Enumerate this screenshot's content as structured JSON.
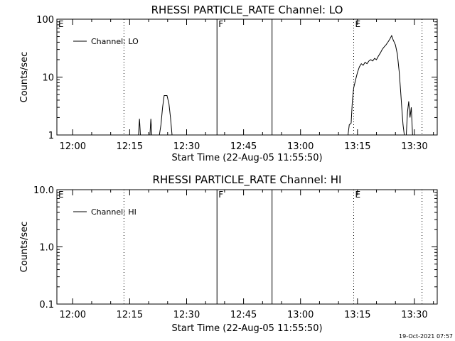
{
  "chart_data": [
    {
      "type": "line",
      "title": "RHESSI PARTICLE_RATE Channel: LO",
      "xlabel": "Start Time (22-Aug-05 11:55:50)",
      "ylabel": "Counts/sec",
      "yscale": "log",
      "xlim": [
        "11:55:50",
        "13:36:00"
      ],
      "ylim": [
        1,
        100
      ],
      "x_ticks": [
        "12:00",
        "12:15",
        "12:30",
        "12:45",
        "13:00",
        "13:15",
        "13:30"
      ],
      "y_ticks": [
        "1",
        "10",
        "100"
      ],
      "grid": false,
      "legend": {
        "position": "top-left",
        "label": "Channel: LO",
        "color": "#000000"
      },
      "markers": [
        {
          "label": "E",
          "time": "11:55:50",
          "style": "dotted"
        },
        {
          "label": "",
          "time": "12:13:30",
          "style": "dotted"
        },
        {
          "label": "F",
          "time": "12:38:00",
          "style": "solid"
        },
        {
          "label": "",
          "time": "12:52:30",
          "style": "solid"
        },
        {
          "label": "E",
          "time": "13:14:00",
          "style": "dotted"
        },
        {
          "label": "",
          "time": "13:32:00",
          "style": "dotted"
        }
      ],
      "series": [
        {
          "name": "Channel: LO",
          "color": "#000000",
          "segments": [
            [
              [
                "12:17:20",
                1.0
              ],
              [
                "12:17:35",
                1.9
              ],
              [
                "12:17:50",
                1.0
              ]
            ],
            [
              [
                "12:20:20",
                1.0
              ],
              [
                "12:20:35",
                1.9
              ],
              [
                "12:20:50",
                1.0
              ]
            ],
            [
              [
                "12:22:50",
                1.0
              ],
              [
                "12:23:15",
                1.5
              ],
              [
                "12:23:40",
                3.0
              ],
              [
                "12:24:05",
                4.8
              ],
              [
                "12:24:50",
                4.8
              ],
              [
                "12:25:20",
                3.5
              ],
              [
                "12:25:45",
                2.0
              ],
              [
                "12:26:10",
                1.0
              ]
            ],
            [
              [
                "13:12:30",
                1.0
              ],
              [
                "13:12:50",
                1.5
              ],
              [
                "13:13:20",
                1.6
              ],
              [
                "13:13:40",
                4.0
              ],
              [
                "13:14:00",
                6.5
              ],
              [
                "13:14:30",
                9.0
              ],
              [
                "13:15:00",
                12
              ],
              [
                "13:15:30",
                15
              ],
              [
                "13:16:00",
                17
              ],
              [
                "13:16:30",
                16
              ],
              [
                "13:17:00",
                18
              ],
              [
                "13:17:30",
                17
              ],
              [
                "13:18:00",
                19
              ],
              [
                "13:18:30",
                20
              ],
              [
                "13:19:00",
                19
              ],
              [
                "13:19:30",
                21
              ],
              [
                "13:20:00",
                20
              ],
              [
                "13:20:30",
                23
              ],
              [
                "13:21:00",
                26
              ],
              [
                "13:21:30",
                30
              ],
              [
                "13:22:00",
                33
              ],
              [
                "13:22:30",
                36
              ],
              [
                "13:23:00",
                40
              ],
              [
                "13:23:30",
                45
              ],
              [
                "13:24:00",
                52
              ],
              [
                "13:24:20",
                45
              ],
              [
                "13:24:40",
                40
              ],
              [
                "13:25:00",
                36
              ],
              [
                "13:25:30",
                25
              ],
              [
                "13:26:00",
                12
              ],
              [
                "13:26:20",
                6
              ],
              [
                "13:26:40",
                3
              ],
              [
                "13:27:00",
                1.5
              ],
              [
                "13:27:20",
                1.0
              ]
            ],
            [
              [
                "13:27:50",
                1.0
              ],
              [
                "13:28:10",
                2.5
              ],
              [
                "13:28:30",
                3.8
              ],
              [
                "13:28:50",
                2.0
              ],
              [
                "13:29:10",
                3.0
              ],
              [
                "13:29:30",
                1.0
              ]
            ]
          ]
        }
      ]
    },
    {
      "type": "line",
      "title": "RHESSI PARTICLE_RATE Channel: HI",
      "xlabel": "Start Time (22-Aug-05 11:55:50)",
      "ylabel": "Counts/sec",
      "yscale": "log",
      "xlim": [
        "11:55:50",
        "13:36:00"
      ],
      "ylim": [
        0.1,
        10
      ],
      "x_ticks": [
        "12:00",
        "12:15",
        "12:30",
        "12:45",
        "13:00",
        "13:15",
        "13:30"
      ],
      "y_ticks": [
        "0.1",
        "1.0",
        "10.0"
      ],
      "grid": false,
      "legend": {
        "position": "top-left",
        "label": "Channel: HI",
        "color": "#000000"
      },
      "markers": [
        {
          "label": "E",
          "time": "11:55:50",
          "style": "dotted"
        },
        {
          "label": "",
          "time": "12:13:30",
          "style": "dotted"
        },
        {
          "label": "F",
          "time": "12:38:00",
          "style": "solid"
        },
        {
          "label": "",
          "time": "12:52:30",
          "style": "solid"
        },
        {
          "label": "E",
          "time": "13:14:00",
          "style": "dotted"
        },
        {
          "label": "",
          "time": "13:32:00",
          "style": "dotted"
        }
      ],
      "series": [
        {
          "name": "Channel: HI",
          "color": "#000000",
          "segments": []
        }
      ]
    }
  ],
  "footer": {
    "timestamp": "19-Oct-2021 07:57"
  }
}
